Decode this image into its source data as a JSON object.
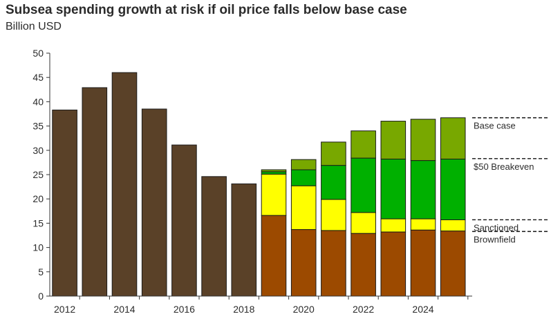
{
  "chart_data": {
    "type": "bar",
    "title": "Subsea spending growth at risk if oil price falls below base case",
    "subtitle": "Billion USD",
    "stacked": true,
    "x": [
      2012,
      2013,
      2014,
      2015,
      2016,
      2017,
      2018,
      2019,
      2020,
      2021,
      2022,
      2023,
      2024,
      2025
    ],
    "x_tick_labels": [
      "2012",
      "2014",
      "2016",
      "2018",
      "2020",
      "2022",
      "2024"
    ],
    "ylim": [
      0,
      50
    ],
    "y_ticks": [
      0,
      5,
      10,
      15,
      20,
      25,
      30,
      35,
      40,
      45,
      50
    ],
    "grid": false,
    "series": [
      {
        "name": "",
        "color": "#5a4128",
        "values": [
          38.3,
          42.9,
          46.0,
          38.5,
          31.1,
          24.6,
          23.1,
          null,
          null,
          null,
          null,
          null,
          null,
          null
        ]
      },
      {
        "name": "Brownfield",
        "color": "#9c4a00",
        "values": [
          null,
          null,
          null,
          null,
          null,
          null,
          null,
          16.6,
          13.7,
          13.5,
          12.9,
          13.2,
          13.6,
          13.4
        ]
      },
      {
        "name": "Sanctioned",
        "color": "#ffff00",
        "values": [
          null,
          null,
          null,
          null,
          null,
          null,
          null,
          8.5,
          9.0,
          6.4,
          4.3,
          2.7,
          2.3,
          2.3
        ]
      },
      {
        "name": "$50 Breakeven",
        "color": "#00b000",
        "values": [
          null,
          null,
          null,
          null,
          null,
          null,
          null,
          0.5,
          3.3,
          7.0,
          11.2,
          12.3,
          12.0,
          12.5
        ]
      },
      {
        "name": "Base case",
        "color": "#78a800",
        "values": [
          null,
          null,
          null,
          null,
          null,
          null,
          null,
          0.4,
          2.1,
          4.8,
          5.6,
          7.8,
          8.5,
          8.5
        ]
      }
    ],
    "annotations": [
      {
        "label": "Base case",
        "y": 36.7
      },
      {
        "label": "$50 Breakeven",
        "y": 28.3
      },
      {
        "label": "Sanctioned",
        "y": 15.7
      },
      {
        "label": "Brownfield",
        "y": 13.3
      }
    ]
  }
}
